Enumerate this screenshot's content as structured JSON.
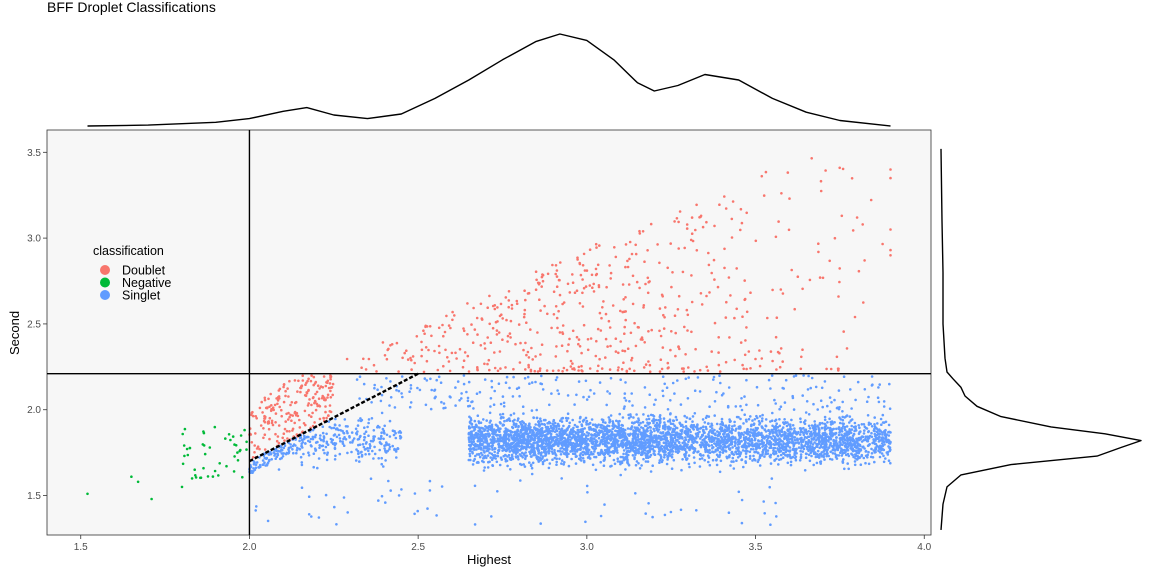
{
  "chart_data": {
    "type": "scatter",
    "title": "BFF Droplet Classifications",
    "xlabel": "Highest",
    "ylabel": "Second",
    "xlim": [
      1.4,
      4.02
    ],
    "ylim": [
      1.27,
      3.63
    ],
    "x_ticks": [
      "1.5",
      "2.0",
      "2.5",
      "3.0",
      "3.5",
      "4.0"
    ],
    "y_ticks": [
      "1.5",
      "2.0",
      "2.5",
      "3.0",
      "3.5"
    ],
    "grid": false,
    "panel_background": "#f7f7f7",
    "legend": {
      "title": "classification",
      "placement": "inside-left",
      "entries": [
        {
          "label": "Doublet",
          "color": "#F8766D"
        },
        {
          "label": "Negative",
          "color": "#00BA38"
        },
        {
          "label": "Singlet",
          "color": "#619CFF"
        }
      ]
    },
    "threshold_lines": {
      "vertical_x": 2.0,
      "horizontal_y": 2.21,
      "dashed_segment": {
        "from": [
          2.0,
          1.7
        ],
        "to": [
          2.5,
          2.21
        ]
      }
    },
    "series": [
      {
        "name": "Doublet",
        "color": "#F8766D",
        "sample_points": [
          [
            2.05,
            1.85
          ],
          [
            2.15,
            2.0
          ],
          [
            2.25,
            2.1
          ],
          [
            2.5,
            2.4
          ],
          [
            2.8,
            2.65
          ],
          [
            3.0,
            2.9
          ],
          [
            3.3,
            3.05
          ],
          [
            3.6,
            3.5
          ],
          [
            3.9,
            3.4
          ],
          [
            3.9,
            2.9
          ]
        ]
      },
      {
        "name": "Negative",
        "color": "#00BA38",
        "sample_points": [
          [
            1.52,
            1.51
          ],
          [
            1.65,
            1.61
          ],
          [
            1.71,
            1.48
          ],
          [
            1.8,
            1.55
          ],
          [
            1.9,
            1.8
          ],
          [
            1.97,
            1.75
          ]
        ]
      },
      {
        "name": "Singlet",
        "color": "#619CFF",
        "sample_points": [
          [
            2.1,
            1.7
          ],
          [
            2.5,
            1.8
          ],
          [
            2.9,
            1.82
          ],
          [
            3.1,
            1.8
          ],
          [
            3.35,
            1.83
          ],
          [
            3.6,
            1.85
          ],
          [
            3.9,
            1.8
          ],
          [
            2.17,
            1.32
          ]
        ]
      }
    ],
    "marginal_density_x": {
      "x": [
        1.52,
        1.7,
        1.9,
        2.0,
        2.1,
        2.17,
        2.25,
        2.35,
        2.45,
        2.55,
        2.65,
        2.75,
        2.85,
        2.92,
        3.0,
        3.08,
        3.15,
        3.2,
        3.27,
        3.35,
        3.45,
        3.55,
        3.65,
        3.75,
        3.9
      ],
      "density": [
        0.0,
        0.01,
        0.04,
        0.08,
        0.16,
        0.2,
        0.12,
        0.08,
        0.13,
        0.3,
        0.5,
        0.72,
        0.92,
        1.0,
        0.93,
        0.72,
        0.47,
        0.38,
        0.44,
        0.56,
        0.5,
        0.3,
        0.15,
        0.06,
        0.0
      ]
    },
    "marginal_density_y": {
      "y": [
        1.3,
        1.45,
        1.55,
        1.62,
        1.68,
        1.73,
        1.78,
        1.82,
        1.86,
        1.9,
        1.96,
        2.02,
        2.08,
        2.13,
        2.18,
        2.22,
        2.3,
        2.5,
        2.8,
        3.1,
        3.52
      ],
      "density": [
        0.0,
        0.01,
        0.03,
        0.1,
        0.35,
        0.78,
        0.9,
        1.0,
        0.82,
        0.55,
        0.3,
        0.18,
        0.12,
        0.1,
        0.06,
        0.03,
        0.02,
        0.01,
        0.01,
        0.005,
        0.0
      ]
    }
  }
}
